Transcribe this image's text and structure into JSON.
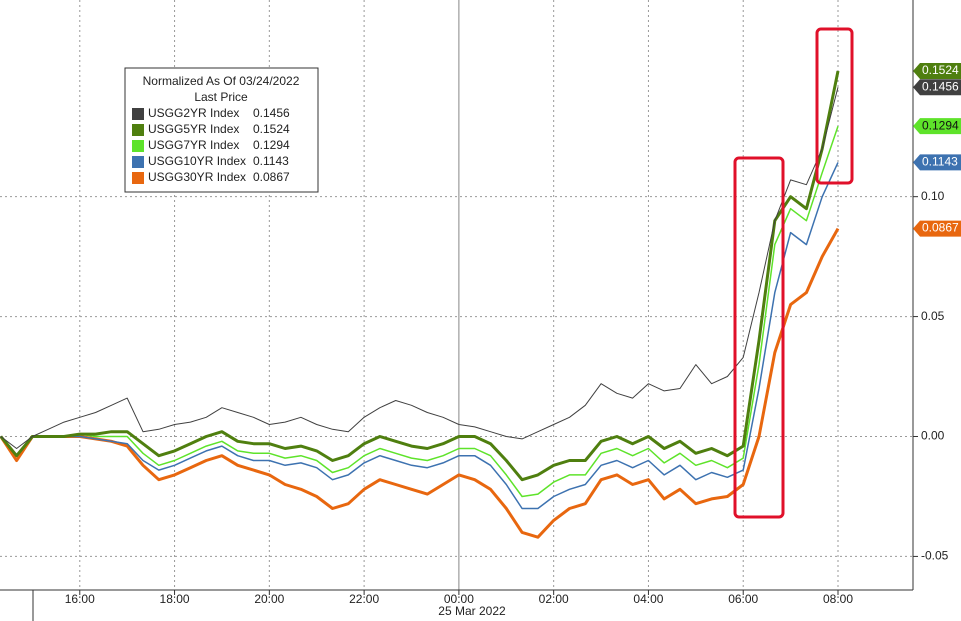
{
  "chart_data": {
    "type": "line",
    "legend": {
      "title": "Normalized As Of 03/24/2022",
      "subtitle": "Last Price"
    },
    "date_label": "25 Mar 2022",
    "categories": [
      null,
      null,
      null,
      null,
      null,
      "16:00",
      null,
      null,
      null,
      null,
      null,
      "18:00",
      null,
      null,
      null,
      null,
      null,
      "20:00",
      null,
      null,
      null,
      null,
      null,
      "22:00",
      null,
      null,
      null,
      null,
      null,
      "00:00",
      null,
      null,
      null,
      null,
      null,
      "02:00",
      null,
      null,
      null,
      null,
      null,
      "04:00",
      null,
      null,
      null,
      null,
      null,
      "06:00",
      null,
      null,
      null,
      null,
      null,
      "08:00"
    ],
    "ylim": [
      -0.064,
      0.182
    ],
    "yticks": [
      {
        "value": 0.1,
        "label": "0.10"
      },
      {
        "value": 0.05,
        "label": "0.05"
      },
      {
        "value": 0,
        "label": "0.00"
      },
      {
        "value": -0.05,
        "label": "-0.05"
      }
    ],
    "grid": true,
    "series": [
      {
        "name": "USGG30YR Index",
        "color": "#e8670f",
        "last": 0.0867,
        "values": [
          0.0,
          -0.01,
          0.0,
          0.0,
          0.0,
          0.0,
          -0.001,
          -0.002,
          -0.004,
          -0.012,
          -0.018,
          -0.016,
          -0.013,
          -0.01,
          -0.008,
          -0.012,
          -0.014,
          -0.016,
          -0.02,
          -0.022,
          -0.025,
          -0.03,
          -0.028,
          -0.022,
          -0.018,
          -0.02,
          -0.022,
          -0.024,
          -0.02,
          -0.016,
          -0.018,
          -0.022,
          -0.03,
          -0.04,
          -0.042,
          -0.035,
          -0.03,
          -0.028,
          -0.018,
          -0.016,
          -0.02,
          -0.018,
          -0.026,
          -0.022,
          -0.028,
          -0.026,
          -0.025,
          -0.02,
          0.0,
          0.035,
          0.055,
          0.06,
          0.075,
          0.0867
        ]
      },
      {
        "name": "USGG10YR Index",
        "color": "#3d72b0",
        "last": 0.1143,
        "values": [
          0.0,
          -0.008,
          0.0,
          0.0,
          0.0,
          0.0,
          -0.001,
          -0.002,
          -0.003,
          -0.01,
          -0.014,
          -0.012,
          -0.009,
          -0.006,
          -0.004,
          -0.008,
          -0.01,
          -0.01,
          -0.012,
          -0.011,
          -0.013,
          -0.018,
          -0.016,
          -0.011,
          -0.008,
          -0.01,
          -0.012,
          -0.013,
          -0.011,
          -0.008,
          -0.008,
          -0.012,
          -0.02,
          -0.03,
          -0.03,
          -0.025,
          -0.022,
          -0.02,
          -0.012,
          -0.01,
          -0.013,
          -0.01,
          -0.016,
          -0.012,
          -0.018,
          -0.015,
          -0.017,
          -0.014,
          0.02,
          0.06,
          0.085,
          0.08,
          0.1,
          0.1143
        ]
      },
      {
        "name": "USGG7YR Index",
        "color": "#5ee32a",
        "last": 0.1294,
        "values": [
          0.0,
          -0.008,
          0.0,
          0.0,
          0.0,
          0.001,
          0.0,
          0.0,
          0.0,
          -0.007,
          -0.012,
          -0.01,
          -0.007,
          -0.004,
          -0.002,
          -0.006,
          -0.007,
          -0.007,
          -0.009,
          -0.008,
          -0.01,
          -0.015,
          -0.013,
          -0.008,
          -0.005,
          -0.007,
          -0.009,
          -0.01,
          -0.008,
          -0.005,
          -0.005,
          -0.008,
          -0.016,
          -0.025,
          -0.024,
          -0.019,
          -0.016,
          -0.016,
          -0.007,
          -0.005,
          -0.008,
          -0.005,
          -0.011,
          -0.007,
          -0.012,
          -0.01,
          -0.013,
          -0.009,
          0.03,
          0.08,
          0.095,
          0.09,
          0.11,
          0.1294
        ]
      },
      {
        "name": "USGG5YR Index",
        "color": "#4f7f0f",
        "last": 0.1524,
        "values": [
          0.0,
          -0.008,
          0.0,
          0.0,
          0.0,
          0.001,
          0.001,
          0.002,
          0.002,
          -0.003,
          -0.008,
          -0.006,
          -0.003,
          0.0,
          0.002,
          -0.002,
          -0.003,
          -0.003,
          -0.005,
          -0.004,
          -0.006,
          -0.01,
          -0.008,
          -0.003,
          0.0,
          -0.002,
          -0.004,
          -0.005,
          -0.003,
          0.0,
          0.0,
          -0.003,
          -0.01,
          -0.018,
          -0.016,
          -0.012,
          -0.01,
          -0.01,
          -0.002,
          0.0,
          -0.003,
          0.0,
          -0.005,
          -0.002,
          -0.007,
          -0.005,
          -0.008,
          -0.004,
          0.04,
          0.09,
          0.1,
          0.095,
          0.12,
          0.1524
        ]
      },
      {
        "name": "USGG2YR Index",
        "color": "#404040",
        "last": 0.1456,
        "values": [
          0.0,
          -0.005,
          0.0,
          0.003,
          0.006,
          0.008,
          0.01,
          0.013,
          0.016,
          0.002,
          0.003,
          0.005,
          0.006,
          0.008,
          0.012,
          0.01,
          0.008,
          0.005,
          0.006,
          0.008,
          0.005,
          0.003,
          0.002,
          0.008,
          0.012,
          0.015,
          0.013,
          0.01,
          0.008,
          0.005,
          0.004,
          0.002,
          0.0,
          -0.001,
          0.002,
          0.005,
          0.008,
          0.013,
          0.022,
          0.018,
          0.016,
          0.022,
          0.019,
          0.02,
          0.03,
          0.022,
          0.025,
          0.033,
          0.06,
          0.09,
          0.107,
          0.105,
          0.12,
          0.1456
        ]
      }
    ]
  }
}
